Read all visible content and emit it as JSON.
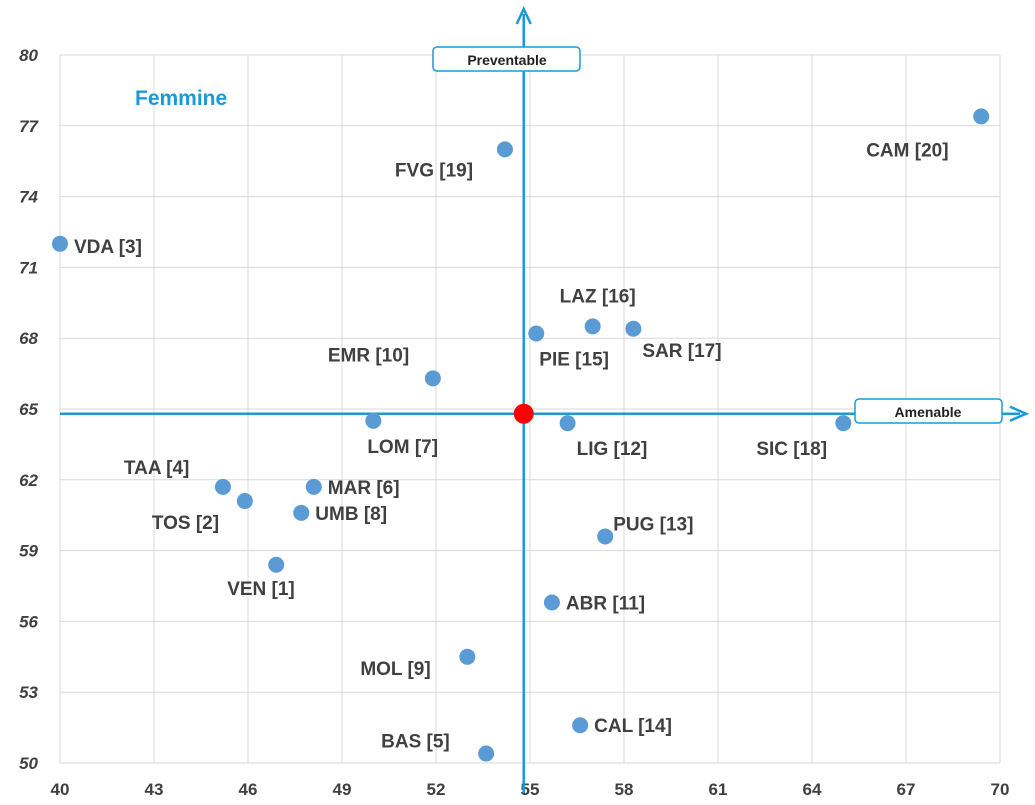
{
  "chart_data": {
    "type": "scatter",
    "title": "Femmine",
    "xlim": [
      40,
      70
    ],
    "ylim": [
      50,
      80
    ],
    "x_ticks": [
      "40",
      "43",
      "46",
      "49",
      "52",
      "55",
      "58",
      "61",
      "64",
      "67",
      "70"
    ],
    "y_ticks": [
      "50",
      "53",
      "56",
      "59",
      "62",
      "65",
      "68",
      "71",
      "74",
      "77",
      "80"
    ],
    "grid": true,
    "reference_point": {
      "x": 54.8,
      "y": 64.8
    },
    "axis_tags": {
      "horizontal": "Amenable",
      "vertical": "Preventable"
    },
    "points": [
      {
        "label": "CAM [20]",
        "x": 69.4,
        "y": 77.4
      },
      {
        "label": "FVG [19]",
        "x": 54.2,
        "y": 76.0
      },
      {
        "label": "VDA [3]",
        "x": 40.0,
        "y": 72.0
      },
      {
        "label": "LAZ [16]",
        "x": 57.0,
        "y": 68.5
      },
      {
        "label": "SAR [17]",
        "x": 58.3,
        "y": 68.4
      },
      {
        "label": "PIE [15]",
        "x": 55.2,
        "y": 68.2
      },
      {
        "label": "EMR [10]",
        "x": 51.9,
        "y": 66.3
      },
      {
        "label": "LOM [7]",
        "x": 50.0,
        "y": 64.5
      },
      {
        "label": "LIG [12]",
        "x": 56.2,
        "y": 64.4
      },
      {
        "label": "SIC [18]",
        "x": 65.0,
        "y": 64.4
      },
      {
        "label": "TAA [4]",
        "x": 45.2,
        "y": 61.7
      },
      {
        "label": "MAR [6]",
        "x": 48.1,
        "y": 61.7
      },
      {
        "label": "TOS [2]",
        "x": 45.9,
        "y": 61.1
      },
      {
        "label": "UMB [8]",
        "x": 47.7,
        "y": 60.6
      },
      {
        "label": "PUG [13]",
        "x": 57.4,
        "y": 59.6
      },
      {
        "label": "VEN [1]",
        "x": 46.9,
        "y": 58.4
      },
      {
        "label": "ABR [11]",
        "x": 55.7,
        "y": 56.8
      },
      {
        "label": "MOL [9]",
        "x": 53.0,
        "y": 54.5
      },
      {
        "label": "CAL [14]",
        "x": 56.6,
        "y": 51.6
      },
      {
        "label": "BAS [5]",
        "x": 53.6,
        "y": 50.4
      }
    ]
  },
  "colors": {
    "point": "#5b9bd5",
    "reference": "#ff0000",
    "axis": "#1a9ad6",
    "grid": "#d9d9d9",
    "title": "#1a9ad6"
  }
}
